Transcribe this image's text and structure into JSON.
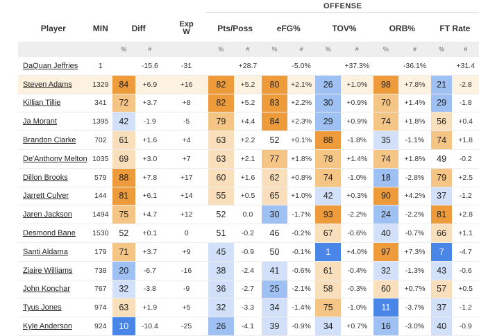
{
  "section_label": "OFFENSE",
  "headers": {
    "player": "Player",
    "min": "MIN",
    "diff": "Diff",
    "expw": [
      "Exp",
      "W"
    ],
    "pts": "Pts/Poss",
    "efg": "eFG%",
    "tov": "TOV%",
    "orb": "ORB%",
    "ft": "FT Rate"
  },
  "subheaders": {
    "pct": "%",
    "num": "#"
  },
  "highlight_row": 1,
  "colors": {
    "orange_strong": "#ee9b3c",
    "orange_mid": "#f5c586",
    "orange_light": "#f9dfbb",
    "blue_strong": "#4a86e8",
    "blue_mid": "#9fc0f2",
    "blue_light": "#d2e1f9",
    "neutral": "#ffffff",
    "highlight": "#fdf1e0"
  },
  "rows": [
    {
      "player": "DaQuan Jeffries",
      "min": "1",
      "diff_p": "",
      "diff": "-15.6",
      "expw": "-31",
      "pts_p": "",
      "pts": "+28.7",
      "efg_p": "",
      "efg": "-5.0%",
      "tov_p": "",
      "tov": "+37.3%",
      "orb_p": "",
      "orb": "-36.1%",
      "ft_p": "",
      "ft": "+31.4"
    },
    {
      "player": "Steven Adams",
      "min": "1329",
      "diff_p": "84",
      "diff": "+6.9",
      "expw": "+16",
      "pts_p": "82",
      "pts": "+5.2",
      "efg_p": "80",
      "efg": "+2.1%",
      "tov_p": "26",
      "tov": "+1.0%",
      "orb_p": "98",
      "orb": "+7.8%",
      "ft_p": "21",
      "ft": "-2.8"
    },
    {
      "player": "Killian Tillie",
      "min": "341",
      "diff_p": "72",
      "diff": "+3.7",
      "expw": "+8",
      "pts_p": "82",
      "pts": "+5.2",
      "efg_p": "83",
      "efg": "+2.2%",
      "tov_p": "30",
      "tov": "+0.9%",
      "orb_p": "70",
      "orb": "+1.4%",
      "ft_p": "29",
      "ft": "-1.8"
    },
    {
      "player": "Ja Morant",
      "min": "1395",
      "diff_p": "42",
      "diff": "-1.9",
      "expw": "-5",
      "pts_p": "79",
      "pts": "+4.4",
      "efg_p": "84",
      "efg": "+2.3%",
      "tov_p": "29",
      "tov": "+0.9%",
      "orb_p": "74",
      "orb": "+1.8%",
      "ft_p": "56",
      "ft": "+0.4"
    },
    {
      "player": "Brandon Clarke",
      "min": "702",
      "diff_p": "61",
      "diff": "+1.6",
      "expw": "+4",
      "pts_p": "63",
      "pts": "+2.2",
      "efg_p": "52",
      "efg": "+0.1%",
      "tov_p": "88",
      "tov": "-1.8%",
      "orb_p": "35",
      "orb": "-1.1%",
      "ft_p": "74",
      "ft": "+1.8"
    },
    {
      "player": "De'Anthony Melton",
      "min": "1035",
      "diff_p": "69",
      "diff": "+3.0",
      "expw": "+7",
      "pts_p": "63",
      "pts": "+2.1",
      "efg_p": "77",
      "efg": "+1.8%",
      "tov_p": "78",
      "tov": "+1.4%",
      "orb_p": "74",
      "orb": "+1.8%",
      "ft_p": "49",
      "ft": "-0.2"
    },
    {
      "player": "Dillon Brooks",
      "min": "579",
      "diff_p": "88",
      "diff": "+7.8",
      "expw": "+17",
      "pts_p": "60",
      "pts": "+1.6",
      "efg_p": "62",
      "efg": "+0.8%",
      "tov_p": "74",
      "tov": "-1.0%",
      "orb_p": "18",
      "orb": "-2.8%",
      "ft_p": "79",
      "ft": "+2.5"
    },
    {
      "player": "Jarrett Culver",
      "min": "144",
      "diff_p": "81",
      "diff": "+6.1",
      "expw": "+14",
      "pts_p": "55",
      "pts": "+0.5",
      "efg_p": "65",
      "efg": "+1.0%",
      "tov_p": "42",
      "tov": "+0.3%",
      "orb_p": "90",
      "orb": "+4.2%",
      "ft_p": "37",
      "ft": "-1.2"
    },
    {
      "player": "Jaren Jackson",
      "min": "1494",
      "diff_p": "75",
      "diff": "+4.7",
      "expw": "+12",
      "pts_p": "52",
      "pts": "0.0",
      "efg_p": "30",
      "efg": "-1.7%",
      "tov_p": "93",
      "tov": "-2.2%",
      "orb_p": "24",
      "orb": "-2.2%",
      "ft_p": "81",
      "ft": "+2.8"
    },
    {
      "player": "Desmond Bane",
      "min": "1530",
      "diff_p": "52",
      "diff": "+0.1",
      "expw": "0",
      "pts_p": "51",
      "pts": "-0.2",
      "efg_p": "46",
      "efg": "-0.2%",
      "tov_p": "67",
      "tov": "-0.6%",
      "orb_p": "40",
      "orb": "-0.7%",
      "ft_p": "66",
      "ft": "+1.1"
    },
    {
      "player": "Santi Aldama",
      "min": "179",
      "diff_p": "71",
      "diff": "+3.7",
      "expw": "+9",
      "pts_p": "45",
      "pts": "-0.9",
      "efg_p": "50",
      "efg": "-0.1%",
      "tov_p": "1",
      "tov": "+4.0%",
      "orb_p": "97",
      "orb": "+7.3%",
      "ft_p": "7",
      "ft": "-4.7"
    },
    {
      "player": "Ziaire Williams",
      "min": "738",
      "diff_p": "20",
      "diff": "-6.7",
      "expw": "-16",
      "pts_p": "38",
      "pts": "-2.4",
      "efg_p": "41",
      "efg": "-0.6%",
      "tov_p": "61",
      "tov": "-0.4%",
      "orb_p": "32",
      "orb": "-1.3%",
      "ft_p": "43",
      "ft": "-0.6"
    },
    {
      "player": "John Konchar",
      "min": "767",
      "diff_p": "32",
      "diff": "-3.8",
      "expw": "-9",
      "pts_p": "36",
      "pts": "-2.7",
      "efg_p": "25",
      "efg": "-2.1%",
      "tov_p": "58",
      "tov": "-0.3%",
      "orb_p": "60",
      "orb": "+0.7%",
      "ft_p": "57",
      "ft": "+0.5"
    },
    {
      "player": "Tyus Jones",
      "min": "974",
      "diff_p": "63",
      "diff": "+1.9",
      "expw": "+5",
      "pts_p": "32",
      "pts": "-3.3",
      "efg_p": "34",
      "efg": "-1.4%",
      "tov_p": "75",
      "tov": "-1.0%",
      "orb_p": "11",
      "orb": "-3.7%",
      "ft_p": "37",
      "ft": "-1.2"
    },
    {
      "player": "Kyle Anderson",
      "min": "924",
      "diff_p": "10",
      "diff": "-10.4",
      "expw": "-25",
      "pts_p": "26",
      "pts": "-4.1",
      "efg_p": "39",
      "efg": "-0.9%",
      "tov_p": "34",
      "tov": "+0.7%",
      "orb_p": "16",
      "orb": "-3.0%",
      "ft_p": "40",
      "ft": "-0.9"
    }
  ]
}
